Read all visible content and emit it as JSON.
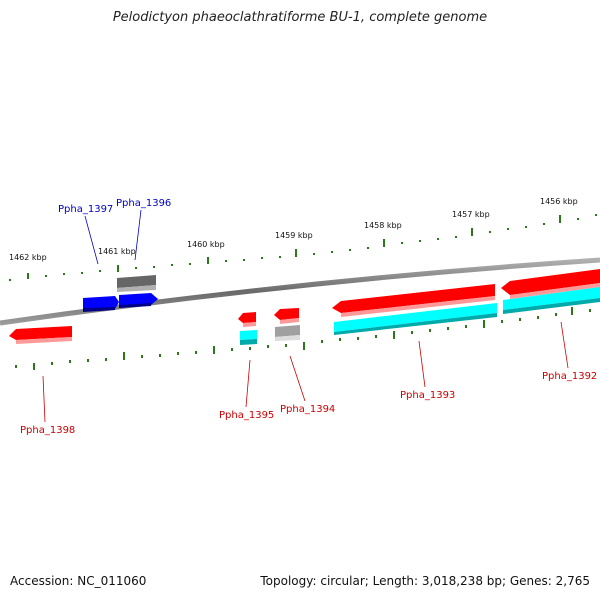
{
  "title": "Pelodictyon phaeoclathratiforme BU-1, complete genome",
  "accession": "Accession: NC_011060",
  "topology": "Topology: circular; Length: 3,018,238 bp; Genes: 2,765",
  "colors": {
    "forward_gene": "#ff0000",
    "reverse_gene": "#0000ff",
    "rna_or_other": "#00ffff",
    "pseudo": "#666666",
    "backbone": "#808080",
    "tick": "#2a7a1a",
    "label_red": "#cc0000",
    "label_blue": "#0000cc"
  },
  "tick_labels": [
    "1462 kbp",
    "1461 kbp",
    "1460 kbp",
    "1459 kbp",
    "1458 kbp",
    "1457 kbp",
    "1456 kbp"
  ],
  "gene_labels": [
    "Ppha_1397",
    "Ppha_1396",
    "Ppha_1398",
    "Ppha_1395",
    "Ppha_1394",
    "Ppha_1393",
    "Ppha_1392"
  ]
}
